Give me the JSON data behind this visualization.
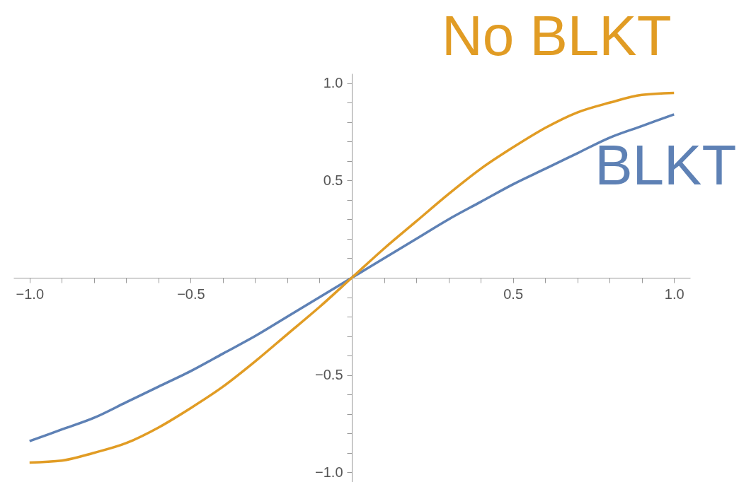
{
  "chart_data": {
    "type": "line",
    "x": [
      -1.0,
      -0.9,
      -0.8,
      -0.7,
      -0.6,
      -0.5,
      -0.4,
      -0.3,
      -0.2,
      -0.1,
      0.0,
      0.1,
      0.2,
      0.3,
      0.4,
      0.5,
      0.6,
      0.7,
      0.8,
      0.9,
      1.0
    ],
    "series": [
      {
        "name": "BLKT",
        "color": "#5e81b5",
        "values": [
          -0.84,
          -0.78,
          -0.72,
          -0.64,
          -0.56,
          -0.48,
          -0.39,
          -0.3,
          -0.2,
          -0.1,
          0.0,
          0.1,
          0.2,
          0.3,
          0.39,
          0.48,
          0.56,
          0.64,
          0.72,
          0.78,
          0.84
        ]
      },
      {
        "name": "No BLKT",
        "color": "#e19c24",
        "values": [
          -0.95,
          -0.94,
          -0.9,
          -0.85,
          -0.77,
          -0.67,
          -0.56,
          -0.43,
          -0.29,
          -0.15,
          0.0,
          0.15,
          0.29,
          0.43,
          0.56,
          0.67,
          0.77,
          0.85,
          0.9,
          0.94,
          0.95
        ]
      }
    ],
    "xlim": [
      -1.05,
      1.05
    ],
    "ylim": [
      -1.05,
      1.05
    ],
    "xticks": [
      {
        "value": -1.0,
        "label": "−1.0"
      },
      {
        "value": -0.9,
        "label": null
      },
      {
        "value": -0.8,
        "label": null
      },
      {
        "value": -0.7,
        "label": null
      },
      {
        "value": -0.6,
        "label": null
      },
      {
        "value": -0.5,
        "label": "−0.5"
      },
      {
        "value": -0.4,
        "label": null
      },
      {
        "value": -0.3,
        "label": null
      },
      {
        "value": -0.2,
        "label": null
      },
      {
        "value": -0.1,
        "label": null
      },
      {
        "value": 0.1,
        "label": null
      },
      {
        "value": 0.2,
        "label": null
      },
      {
        "value": 0.3,
        "label": null
      },
      {
        "value": 0.4,
        "label": null
      },
      0.5,
      {
        "value": 0.6,
        "label": null
      },
      {
        "value": 0.7,
        "label": null
      },
      {
        "value": 0.8,
        "label": null
      },
      {
        "value": 0.9,
        "label": null
      },
      {
        "value": 1.0,
        "label": "1.0"
      }
    ],
    "yticks": [
      {
        "value": -1.0,
        "label": "−1.0"
      },
      {
        "value": -0.9,
        "label": null
      },
      {
        "value": -0.8,
        "label": null
      },
      {
        "value": -0.7,
        "label": null
      },
      {
        "value": -0.6,
        "label": null
      },
      {
        "value": -0.5,
        "label": "−0.5"
      },
      {
        "value": -0.4,
        "label": null
      },
      {
        "value": -0.3,
        "label": null
      },
      {
        "value": -0.2,
        "label": null
      },
      {
        "value": -0.1,
        "label": null
      },
      {
        "value": 0.1,
        "label": null
      },
      {
        "value": 0.2,
        "label": null
      },
      {
        "value": 0.3,
        "label": null
      },
      {
        "value": 0.4,
        "label": null
      },
      0.5,
      {
        "value": 0.6,
        "label": null
      },
      {
        "value": 0.7,
        "label": null
      },
      {
        "value": 0.8,
        "label": null
      },
      {
        "value": 0.9,
        "label": null
      },
      {
        "value": 1.0,
        "label": "1.0"
      }
    ],
    "grid": false,
    "legend": false
  }
}
